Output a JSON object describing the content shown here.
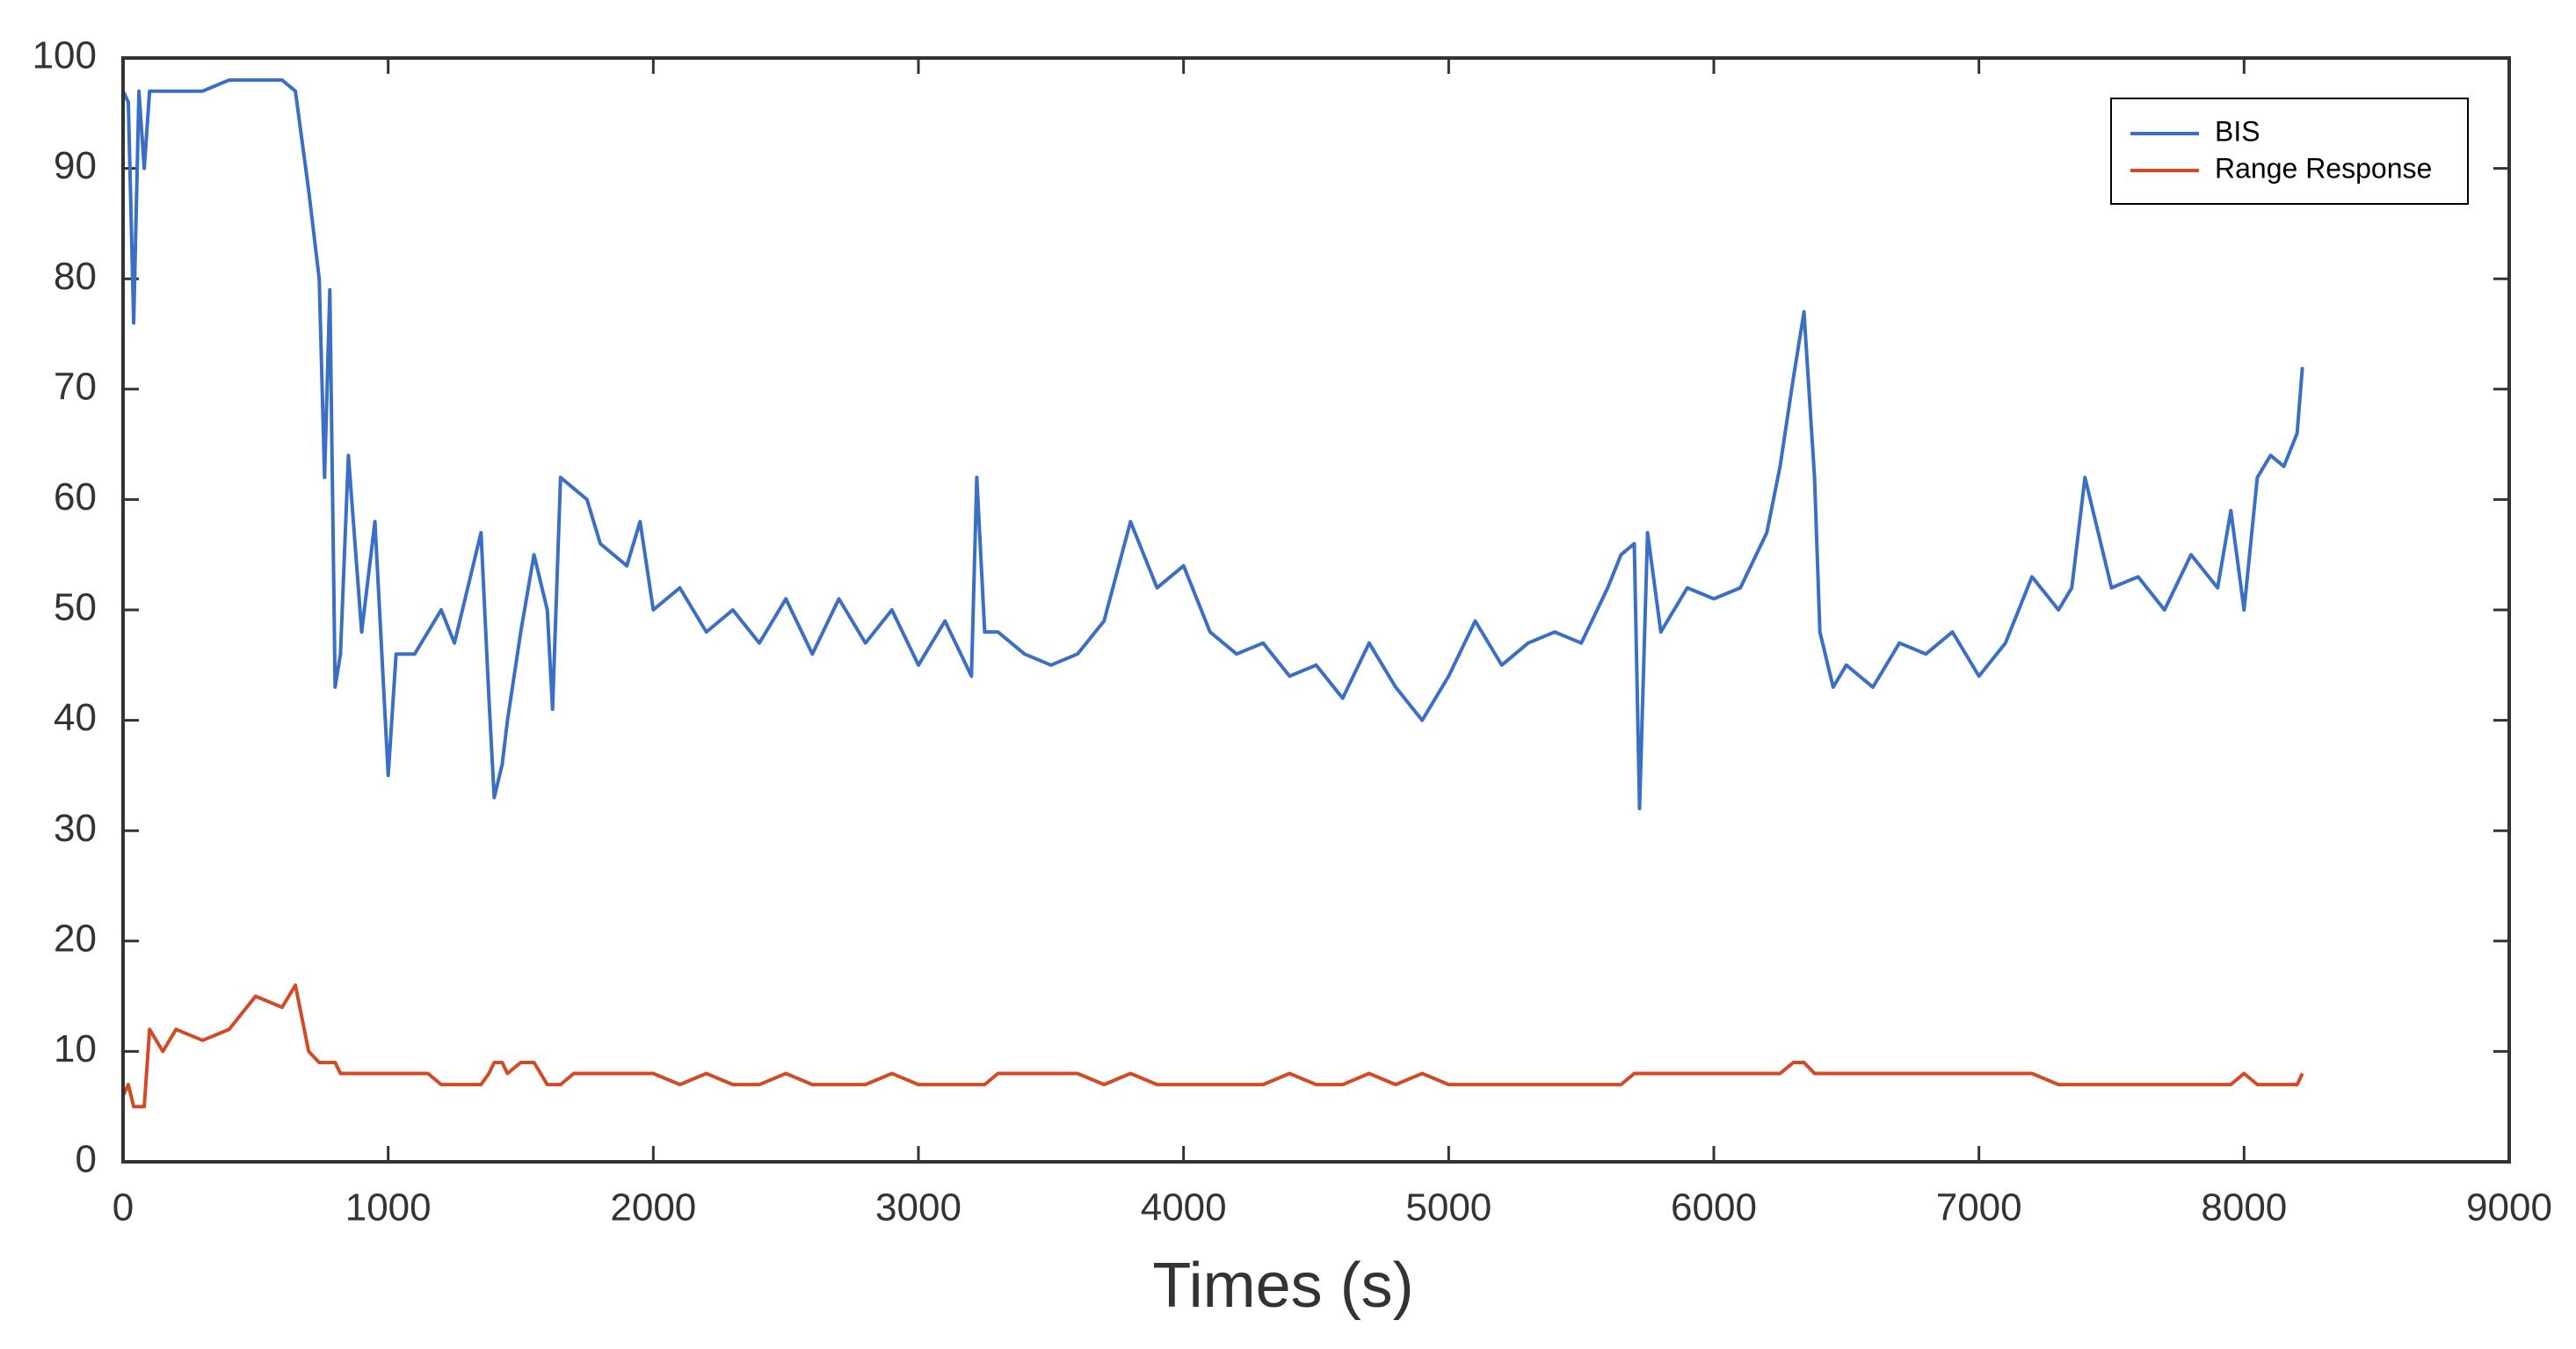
{
  "chart_data": {
    "type": "line",
    "x_label": "Times (s)",
    "x": [
      0,
      20,
      40,
      60,
      80,
      100,
      150,
      200,
      300,
      400,
      500,
      600,
      650,
      700,
      740,
      760,
      780,
      800,
      820,
      850,
      900,
      950,
      1000,
      1030,
      1100,
      1150,
      1200,
      1250,
      1300,
      1350,
      1380,
      1400,
      1430,
      1450,
      1500,
      1550,
      1600,
      1620,
      1650,
      1700,
      1750,
      1800,
      1850,
      1900,
      1950,
      2000,
      2100,
      2200,
      2300,
      2400,
      2500,
      2600,
      2700,
      2800,
      2900,
      3000,
      3100,
      3200,
      3220,
      3250,
      3300,
      3400,
      3500,
      3600,
      3700,
      3800,
      3900,
      4000,
      4100,
      4200,
      4300,
      4400,
      4500,
      4600,
      4700,
      4800,
      4900,
      5000,
      5100,
      5200,
      5300,
      5400,
      5500,
      5600,
      5650,
      5700,
      5720,
      5750,
      5800,
      5900,
      6000,
      6100,
      6200,
      6250,
      6300,
      6340,
      6380,
      6400,
      6450,
      6500,
      6600,
      6700,
      6800,
      6900,
      7000,
      7100,
      7200,
      7300,
      7350,
      7400,
      7500,
      7600,
      7700,
      7800,
      7900,
      7950,
      8000,
      8050,
      8100,
      8150,
      8200,
      8220
    ],
    "series": [
      {
        "name": "BIS",
        "color": "#3b6fc3",
        "values": [
          97,
          96,
          76,
          97,
          90,
          97,
          97,
          97,
          97,
          98,
          98,
          98,
          97,
          88,
          80,
          62,
          79,
          43,
          46,
          64,
          48,
          58,
          35,
          46,
          46,
          48,
          50,
          47,
          52,
          57,
          42,
          33,
          36,
          40,
          48,
          55,
          50,
          41,
          62,
          61,
          60,
          56,
          55,
          54,
          58,
          50,
          52,
          48,
          50,
          47,
          51,
          46,
          51,
          47,
          50,
          45,
          49,
          44,
          62,
          48,
          48,
          46,
          45,
          46,
          49,
          58,
          52,
          54,
          48,
          46,
          47,
          44,
          45,
          42,
          47,
          43,
          40,
          44,
          49,
          45,
          47,
          48,
          47,
          52,
          55,
          56,
          32,
          57,
          48,
          52,
          51,
          52,
          57,
          63,
          71,
          77,
          62,
          48,
          43,
          45,
          43,
          47,
          46,
          48,
          44,
          47,
          53,
          50,
          52,
          62,
          52,
          53,
          50,
          55,
          52,
          59,
          50,
          62,
          64,
          63,
          66,
          72
        ]
      },
      {
        "name": "Range Response",
        "color": "#d24a26",
        "values": [
          6,
          7,
          5,
          5,
          5,
          12,
          10,
          12,
          11,
          12,
          15,
          14,
          16,
          10,
          9,
          9,
          9,
          9,
          8,
          8,
          8,
          8,
          8,
          8,
          8,
          8,
          7,
          7,
          7,
          7,
          8,
          9,
          9,
          8,
          9,
          9,
          7,
          7,
          7,
          8,
          8,
          8,
          8,
          8,
          8,
          8,
          7,
          8,
          7,
          7,
          8,
          7,
          7,
          7,
          8,
          7,
          7,
          7,
          7,
          7,
          8,
          8,
          8,
          8,
          7,
          8,
          7,
          7,
          7,
          7,
          7,
          8,
          7,
          7,
          8,
          7,
          8,
          7,
          7,
          7,
          7,
          7,
          7,
          7,
          7,
          8,
          8,
          8,
          8,
          8,
          8,
          8,
          8,
          8,
          9,
          9,
          8,
          8,
          8,
          8,
          8,
          8,
          8,
          8,
          8,
          8,
          8,
          7,
          7,
          7,
          7,
          7,
          7,
          7,
          7,
          7,
          8,
          7,
          7,
          7,
          7,
          8
        ]
      }
    ],
    "xlim": [
      0,
      9000
    ],
    "xticks": [
      0,
      1000,
      2000,
      3000,
      4000,
      5000,
      6000,
      7000,
      8000,
      9000
    ],
    "ylim": [
      0,
      100
    ],
    "yticks": [
      0,
      10,
      20,
      30,
      40,
      50,
      60,
      70,
      80,
      90,
      100
    ],
    "grid": false,
    "legend": "upper right"
  }
}
